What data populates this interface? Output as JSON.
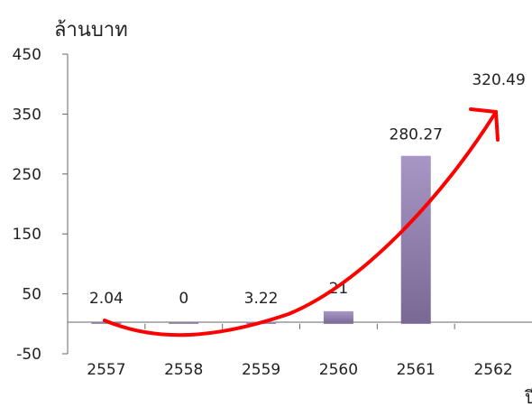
{
  "chart_data": {
    "type": "bar",
    "ylabel": "ล้านบาท",
    "xlabel": "",
    "categories": [
      "2557",
      "2558",
      "2559",
      "2560",
      "2561",
      "2562"
    ],
    "values": [
      2.04,
      0,
      3.22,
      21,
      280.27,
      null
    ],
    "data_labels": [
      "2.04",
      "0",
      "3.22",
      "21",
      "280.27",
      "320.49"
    ],
    "y_ticks": [
      "450",
      "350",
      "250",
      "150",
      "50",
      "-50"
    ],
    "ylim": [
      -50,
      450
    ],
    "grid": false,
    "legend": "none",
    "bar_color": "#8c7aa8",
    "trend_arrow_color": "#ff0000"
  }
}
